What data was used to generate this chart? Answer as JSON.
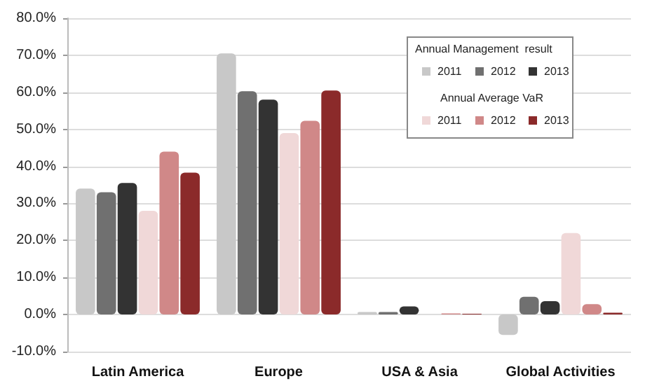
{
  "chart_data": {
    "type": "bar",
    "categories": [
      "Latin America",
      "Europe",
      "USA & Asia",
      "Global Activities"
    ],
    "series": [
      {
        "name": "2011",
        "color": "#c8c8c8",
        "values": [
          34,
          70.5,
          0.7,
          -5.5
        ]
      },
      {
        "name": "2012",
        "color": "#707070",
        "values": [
          33,
          60.3,
          0.7,
          4.8
        ]
      },
      {
        "name": "2013",
        "color": "#333333",
        "values": [
          35.5,
          58,
          2.2,
          3.6
        ]
      },
      {
        "name": "2011",
        "color": "#f0d8d8",
        "values": [
          28,
          49,
          null,
          22
        ]
      },
      {
        "name": "2012",
        "color": "#d08888",
        "values": [
          44,
          52.3,
          0.3,
          2.8
        ]
      },
      {
        "name": "2013",
        "color": "#8b2a2a",
        "values": [
          38.3,
          60.5,
          0.2,
          0.5
        ]
      }
    ],
    "ylim": [
      -10,
      80
    ],
    "yticks": [
      {
        "value": -10,
        "label": "-10.0%"
      },
      {
        "value": 0,
        "label": "0.0%"
      },
      {
        "value": 10,
        "label": "10.0%"
      },
      {
        "value": 20,
        "label": "20.0%"
      },
      {
        "value": 30,
        "label": "30.0%"
      },
      {
        "value": 40,
        "label": "40.0%"
      },
      {
        "value": 50,
        "label": "50.0%"
      },
      {
        "value": 60,
        "label": "60.0%"
      },
      {
        "value": 70,
        "label": "70.0%"
      },
      {
        "value": 80,
        "label": "80.0%"
      }
    ],
    "legend_title": "Annual Management  result",
    "annotations": [
      "Annual Average VaR"
    ],
    "grid": "y",
    "legend": "top right"
  }
}
